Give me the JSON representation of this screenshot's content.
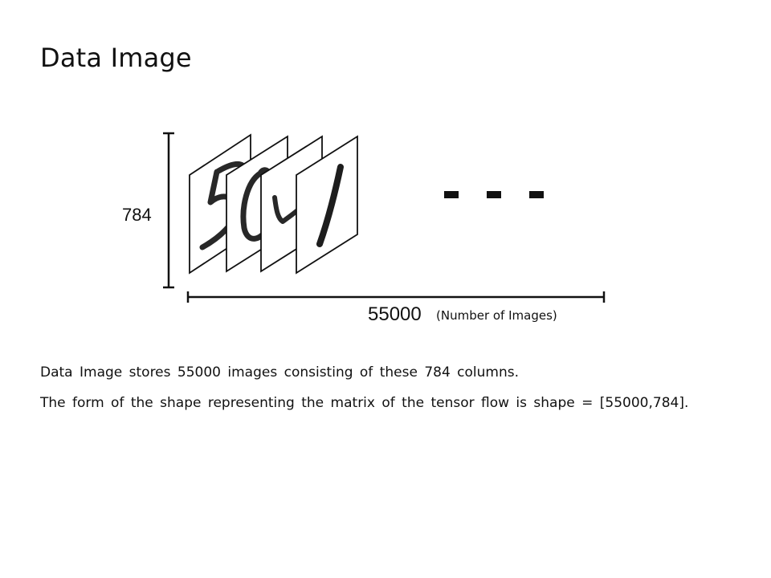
{
  "slide": {
    "title": "Data Image"
  },
  "diagram": {
    "height_label": "784",
    "width_label": "55000",
    "width_caption": "(Number of Images)",
    "ellipsis": "- - -",
    "digits_depicted": [
      "5",
      "0",
      "4",
      "1"
    ]
  },
  "body": {
    "line_1": "Data Image stores 55000 images consisting of these 784 columns.",
    "line_2": "The form of the shape representing the matrix of the tensor flow is shape = [55000,784]."
  }
}
